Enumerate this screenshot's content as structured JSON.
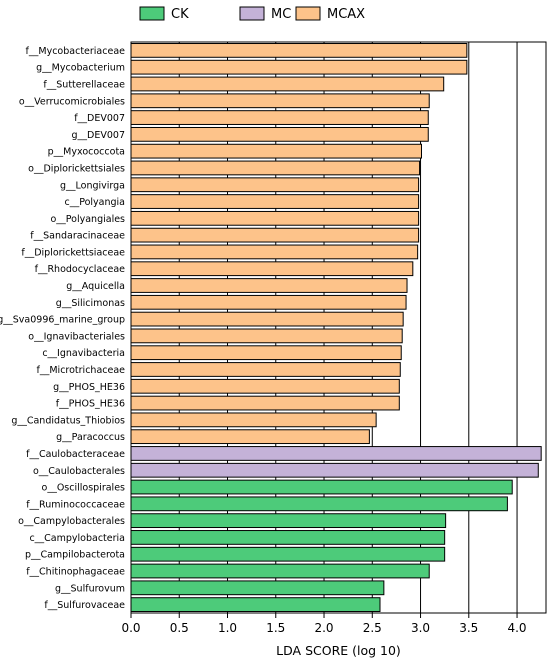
{
  "chart_data": {
    "type": "bar",
    "orientation": "horizontal",
    "title": "",
    "xlabel": "LDA SCORE (log 10)",
    "ylabel": "",
    "xlim": [
      0,
      4.3
    ],
    "xticks": [
      0.0,
      0.5,
      1.0,
      1.5,
      2.0,
      2.5,
      3.0,
      3.5,
      4.0
    ],
    "xtick_labels": [
      "0.0",
      "0.5",
      "1.0",
      "1.5",
      "2.0",
      "2.5",
      "3.0",
      "3.5",
      "4.0"
    ],
    "grid": "vertical lines at major x ticks",
    "legend_position": "top",
    "legend": [
      {
        "name": "CK",
        "color": "#4dcb7a"
      },
      {
        "name": "MC",
        "color": "#c4b2d8"
      },
      {
        "name": "MCAX",
        "color": "#fdc38a"
      }
    ],
    "bars": [
      {
        "label": "f__Mycobacteriaceae",
        "group": "MCAX",
        "value": 3.48
      },
      {
        "label": "g__Mycobacterium",
        "group": "MCAX",
        "value": 3.48
      },
      {
        "label": "f__Sutterellaceae",
        "group": "MCAX",
        "value": 3.24
      },
      {
        "label": "o__Verrucomicrobiales",
        "group": "MCAX",
        "value": 3.09
      },
      {
        "label": "f__DEV007",
        "group": "MCAX",
        "value": 3.08
      },
      {
        "label": "g__DEV007",
        "group": "MCAX",
        "value": 3.08
      },
      {
        "label": "p__Myxococcota",
        "group": "MCAX",
        "value": 3.01
      },
      {
        "label": "o__Diplorickettsiales",
        "group": "MCAX",
        "value": 2.99
      },
      {
        "label": "g__Longivirga",
        "group": "MCAX",
        "value": 2.98
      },
      {
        "label": "c__Polyangia",
        "group": "MCAX",
        "value": 2.98
      },
      {
        "label": "o__Polyangiales",
        "group": "MCAX",
        "value": 2.98
      },
      {
        "label": "f__Sandaracinaceae",
        "group": "MCAX",
        "value": 2.98
      },
      {
        "label": "f__Diplorickettsiaceae",
        "group": "MCAX",
        "value": 2.97
      },
      {
        "label": "f__Rhodocyclaceae",
        "group": "MCAX",
        "value": 2.92
      },
      {
        "label": "g__Aquicella",
        "group": "MCAX",
        "value": 2.86
      },
      {
        "label": "g__Silicimonas",
        "group": "MCAX",
        "value": 2.85
      },
      {
        "label": "g__Sva0996_marine_group",
        "group": "MCAX",
        "value": 2.82
      },
      {
        "label": "o__Ignavibacteriales",
        "group": "MCAX",
        "value": 2.81
      },
      {
        "label": "c__Ignavibacteria",
        "group": "MCAX",
        "value": 2.8
      },
      {
        "label": "f__Microtrichaceae",
        "group": "MCAX",
        "value": 2.79
      },
      {
        "label": "g__PHOS_HE36",
        "group": "MCAX",
        "value": 2.78
      },
      {
        "label": "f__PHOS_HE36",
        "group": "MCAX",
        "value": 2.78
      },
      {
        "label": "g__Candidatus_Thiobios",
        "group": "MCAX",
        "value": 2.54
      },
      {
        "label": "g__Paracoccus",
        "group": "MCAX",
        "value": 2.47
      },
      {
        "label": "f__Caulobacteraceae",
        "group": "MC",
        "value": 4.25
      },
      {
        "label": "o__Caulobacterales",
        "group": "MC",
        "value": 4.22
      },
      {
        "label": "o__Oscillospirales",
        "group": "CK",
        "value": 3.95
      },
      {
        "label": "f__Ruminococcaceae",
        "group": "CK",
        "value": 3.9
      },
      {
        "label": "o__Campylobacterales",
        "group": "CK",
        "value": 3.26
      },
      {
        "label": "c__Campylobacteria",
        "group": "CK",
        "value": 3.25
      },
      {
        "label": "p__Campilobacterota",
        "group": "CK",
        "value": 3.25
      },
      {
        "label": "f__Chitinophagaceae",
        "group": "CK",
        "value": 3.09
      },
      {
        "label": "g__Sulfurovum",
        "group": "CK",
        "value": 2.62
      },
      {
        "label": "f__Sulfurovaceae",
        "group": "CK",
        "value": 2.58
      }
    ]
  }
}
